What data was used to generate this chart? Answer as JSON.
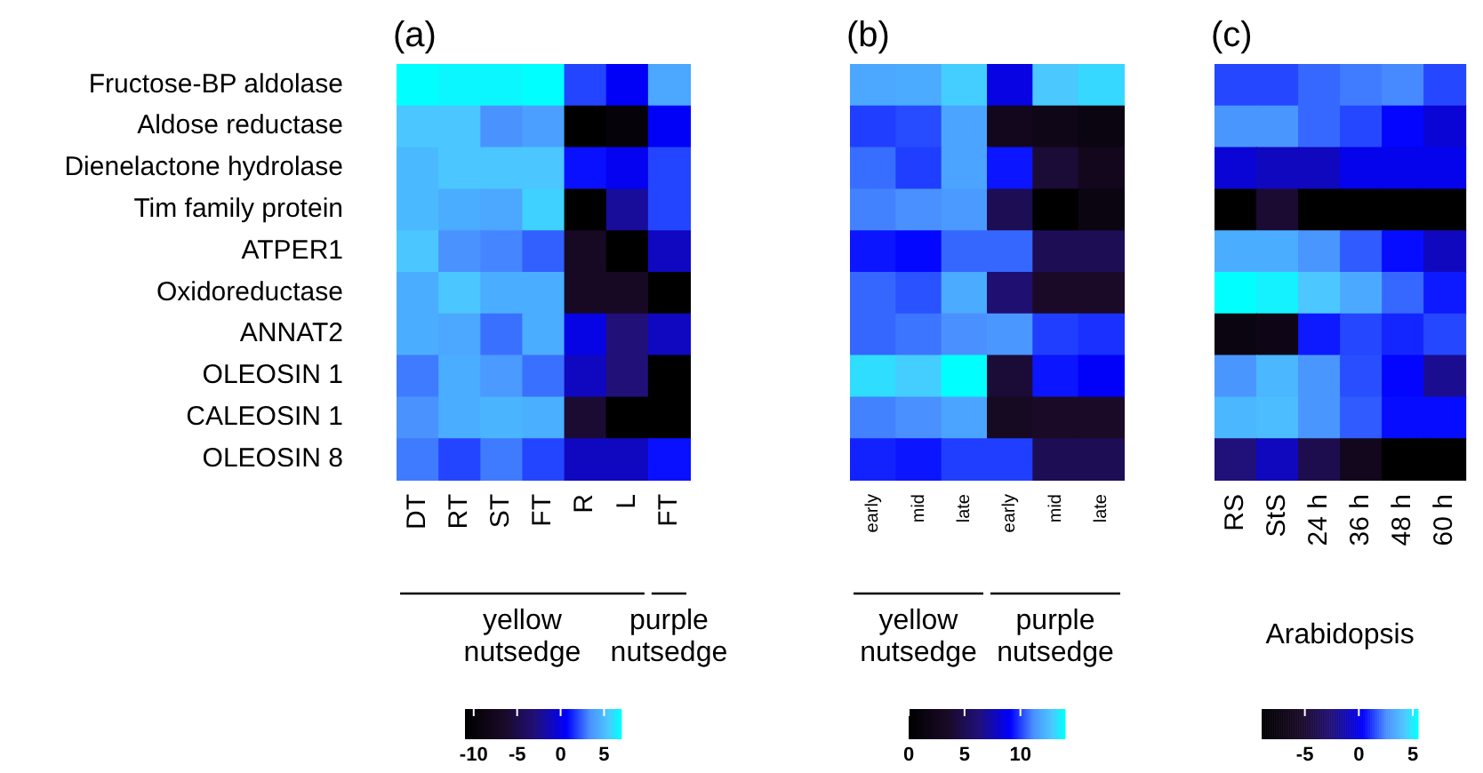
{
  "chart_data": [
    {
      "type": "heatmap",
      "title": "(a)",
      "categories": [
        "DT",
        "RT",
        "ST",
        "FT",
        "R",
        "L",
        "FT"
      ],
      "y_categories": [
        "Fructose-BP aldolase",
        "Aldose reductase",
        "Dienelactone hydrolase",
        "Tim family protein",
        "ATPER1",
        "Oxidoreductase",
        "ANNAT2",
        "OLEOSIN 1",
        "CALEOSIN 1",
        "OLEOSIN 8"
      ],
      "cells": [
        [
          7,
          6.8,
          6.8,
          7,
          2,
          0.5,
          4.3
        ],
        [
          5.5,
          5.5,
          3.5,
          4,
          -11,
          -10,
          0.5
        ],
        [
          5,
          5.5,
          5.5,
          5.5,
          1,
          0.3,
          2
        ],
        [
          5,
          4.5,
          4.3,
          5.8,
          -11,
          -2,
          2
        ],
        [
          5.5,
          3.5,
          3.2,
          2.5,
          -7,
          -11,
          -1
        ],
        [
          4.5,
          5.5,
          4.5,
          4.5,
          -7,
          -7,
          -11
        ],
        [
          4.5,
          4.3,
          2.8,
          4.5,
          0,
          -3,
          -1
        ],
        [
          3,
          4.5,
          3.8,
          2.8,
          -1,
          -3,
          -11
        ],
        [
          3.5,
          4.5,
          4.8,
          4.6,
          -6,
          -11,
          -11
        ],
        [
          3,
          2,
          3,
          2,
          -1,
          -1,
          1
        ]
      ],
      "clim": [
        -11,
        7
      ],
      "cticks": [
        -10,
        -5,
        0,
        5
      ],
      "annotations": [
        "yellow nutsedge",
        "purple nutsedge"
      ]
    },
    {
      "type": "heatmap",
      "title": "(b)",
      "categories": [
        "early",
        "mid",
        "late",
        "early",
        "mid",
        "late"
      ],
      "y_categories": [
        null,
        null,
        null,
        null,
        null,
        null,
        null,
        null,
        null,
        null
      ],
      "cells": [
        [
          11.9,
          12,
          13,
          8.5,
          12.9,
          13.2
        ],
        [
          10,
          10.2,
          11.8,
          2.5,
          2,
          1.5
        ],
        [
          10.7,
          10,
          11.8,
          9.4,
          4,
          2.5
        ],
        [
          11,
          11.2,
          11.5,
          5,
          0,
          1.5
        ],
        [
          9.4,
          9.2,
          10.6,
          10.6,
          5,
          5
        ],
        [
          10.6,
          10.3,
          12,
          6,
          3.5,
          3.5
        ],
        [
          10.6,
          10.8,
          11.2,
          11.4,
          10,
          9.8
        ],
        [
          13.3,
          13,
          14,
          4,
          9.4,
          9
        ],
        [
          11,
          11.2,
          11.8,
          3,
          3.5,
          3.5
        ],
        [
          9.6,
          9.4,
          10,
          10,
          5,
          5
        ]
      ],
      "clim": [
        0,
        14
      ],
      "cticks": [
        0,
        5,
        10
      ],
      "annotations": [
        "yellow nutsedge",
        "purple nutsedge"
      ],
      "tick_labels": "x"
    },
    {
      "type": "heatmap",
      "title": "(c)",
      "categories": [
        "RS",
        "StS",
        "24 h",
        "36 h",
        "48 h",
        "60 h"
      ],
      "xlabel": "Arabidopsis",
      "y_categories": [
        null,
        null,
        null,
        null,
        null,
        null,
        null,
        null,
        null,
        null
      ],
      "cells": [
        [
          1.5,
          1.5,
          2,
          2.3,
          2.5,
          1.5
        ],
        [
          2.8,
          2.8,
          2,
          1.5,
          0.5,
          -0.5
        ],
        [
          -0.5,
          -1,
          -1,
          0,
          0,
          0
        ],
        [
          -9,
          -5,
          -9,
          -9,
          -9,
          -9
        ],
        [
          3.5,
          3.5,
          2.8,
          1.8,
          0.6,
          -1
        ],
        [
          5.5,
          5.2,
          4.3,
          3.4,
          2,
          0.8
        ],
        [
          -7.5,
          -7,
          0.8,
          1.5,
          1,
          1.5
        ],
        [
          2.8,
          3.8,
          2.8,
          1.6,
          0.5,
          -2
        ],
        [
          3.8,
          4,
          2.8,
          1.8,
          0.6,
          0.6
        ],
        [
          -2.5,
          -1,
          -4,
          -6.5,
          -9,
          -9
        ]
      ],
      "clim": [
        -9,
        5.5
      ],
      "cticks": [
        -5,
        0,
        5
      ],
      "tick_labels": "x"
    }
  ]
}
